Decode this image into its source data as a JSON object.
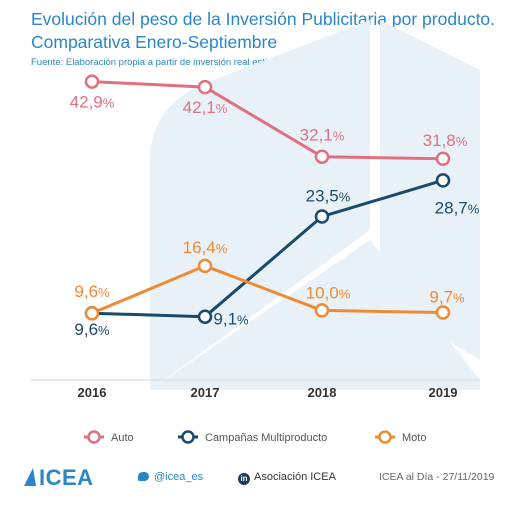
{
  "header": {
    "title_line1": "Evolución del peso de la Inversión Publicitaria por producto.",
    "title_line2": "Comparativa Enero-Septiembre",
    "source": "Fuente: Elaboración propia a partir de inversión real estimada de Infoadex"
  },
  "chart_data": {
    "type": "line",
    "x": [
      "2016",
      "2017",
      "2018",
      "2019"
    ],
    "ylim": [
      0,
      46
    ],
    "grid": false,
    "legend": "bottom",
    "series": [
      {
        "name": "Auto",
        "color": "#e0707f",
        "values": [
          42.9,
          42.1,
          32.1,
          31.8
        ],
        "labels": [
          "42,9%",
          "42,1%",
          "32,1%",
          "31,8%"
        ]
      },
      {
        "name": "Campañas Multiproducto",
        "color": "#1a4a6b",
        "values": [
          9.6,
          9.1,
          23.5,
          28.7
        ],
        "labels": [
          "9,6%",
          "9,1%",
          "23,5%",
          "28,7%"
        ]
      },
      {
        "name": "Moto",
        "color": "#ee8a33",
        "values": [
          9.6,
          16.4,
          10.0,
          9.7
        ],
        "labels": [
          "9,6%",
          "16,4%",
          "10,0%",
          "9,7%"
        ]
      }
    ]
  },
  "footer": {
    "logo": "ICEA",
    "logo_icon": "icea-triangle-icon",
    "twitter_handle": "@icea_es",
    "linkedin_name": "Asociación ICEA",
    "date_label": "ICEA al Día - 27/11/2019"
  },
  "colors": {
    "accent": "#2a86c8",
    "watermark": "#e9f1f8",
    "axis": "#d6d6d6"
  }
}
